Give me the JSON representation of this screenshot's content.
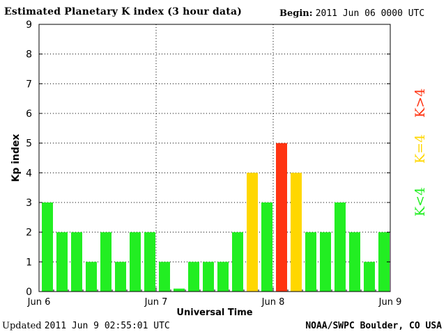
{
  "header": {
    "title": "Estimated Planetary K index (3 hour data)",
    "begin_label": "Begin:",
    "begin_value": "2011 Jun 06 0000 UTC"
  },
  "footer": {
    "updated_label": "Updated",
    "updated_value": "2011 Jun  9 02:55:01 UTC",
    "source": "NOAA/SWPC Boulder, CO USA"
  },
  "legend": {
    "low": "K<4",
    "eq": "K=4",
    "high": "K>4"
  },
  "colors": {
    "low": "#22ee22",
    "eq": "#ffd700",
    "high": "#ff3311",
    "axis": "#000000"
  },
  "chart_data": {
    "type": "bar",
    "title": "Estimated Planetary K index (3 hour data)",
    "xlabel": "Universal Time",
    "ylabel": "Kp index",
    "ylim": [
      0,
      9
    ],
    "yticks": [
      0,
      1,
      2,
      3,
      4,
      5,
      6,
      7,
      8,
      9
    ],
    "xtick_labels": [
      "Jun 6",
      "Jun 7",
      "Jun 8",
      "Jun 9"
    ],
    "grid": true,
    "bars_per_day": 8,
    "values": [
      3,
      2,
      2,
      1,
      2,
      1,
      2,
      2,
      1,
      0.1,
      1,
      1,
      1,
      2,
      4,
      3,
      5,
      4,
      2,
      2,
      3,
      2,
      1,
      2
    ]
  }
}
